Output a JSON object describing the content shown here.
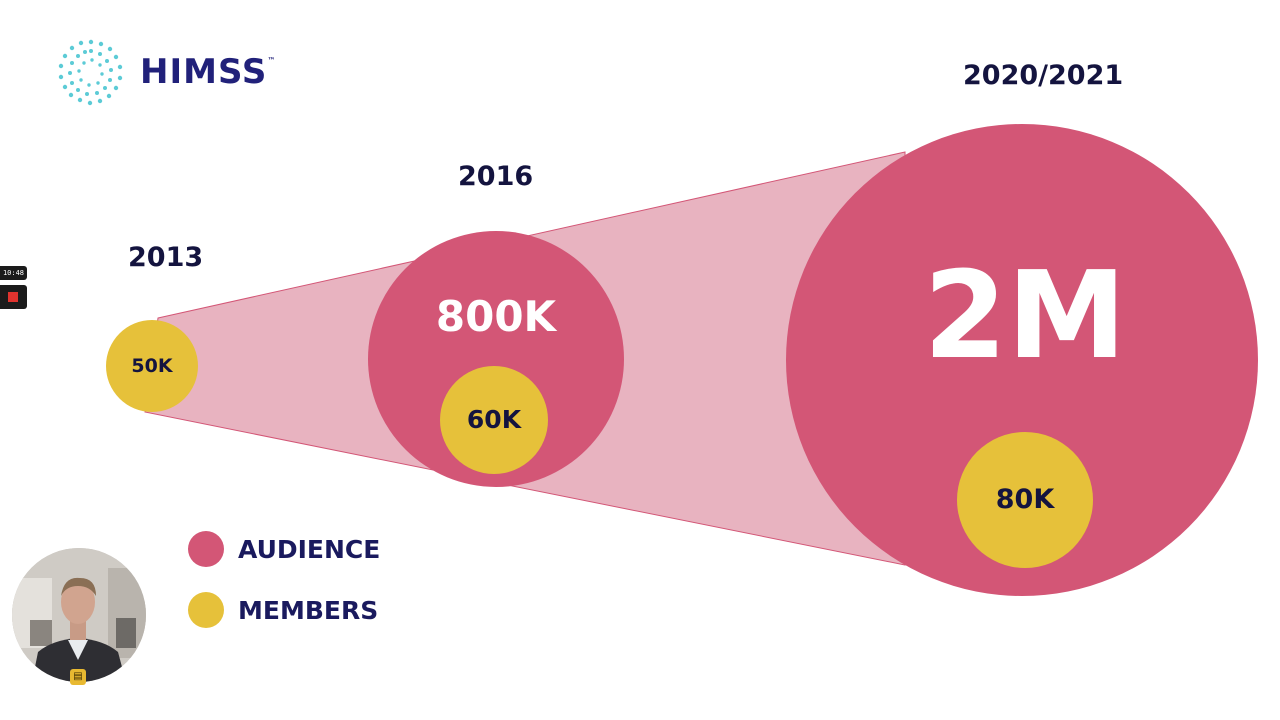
{
  "brand": {
    "name": "HIMSS",
    "trademark": "™"
  },
  "colors": {
    "audience": "#d35676",
    "audience_cone": "#e8b3c0",
    "members": "#e6c13a",
    "navy": "#14143f",
    "logo_teal": "#5ccbd6"
  },
  "years": {
    "y2013": "2013",
    "y2016": "2016",
    "y2020": "2020/2021"
  },
  "audience": {
    "y2016": "800K",
    "y2020": "2M"
  },
  "members": {
    "y2013": "50K",
    "y2016": "60K",
    "y2020": "80K"
  },
  "legend": {
    "audience_label": "AUDIENCE",
    "members_label": "MEMBERS"
  },
  "recorder": {
    "timer": "10:48",
    "stop_icon": "stop-icon"
  },
  "webcam": {
    "icon": "gift-icon"
  }
}
